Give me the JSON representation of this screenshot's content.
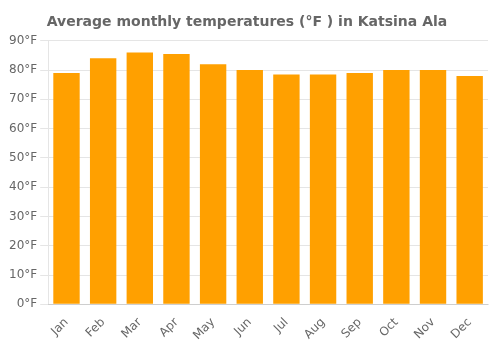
{
  "chart_data": {
    "type": "bar",
    "title": "Average monthly temperatures (°F ) in Katsina Ala",
    "categories": [
      "Jan",
      "Feb",
      "Mar",
      "Apr",
      "May",
      "Jun",
      "Jul",
      "Aug",
      "Sep",
      "Oct",
      "Nov",
      "Dec"
    ],
    "values": [
      79,
      84,
      86,
      85.5,
      82,
      80,
      78.5,
      78.5,
      79,
      80,
      80,
      78
    ],
    "color": "#FFA000",
    "ylim": [
      0,
      90
    ],
    "yticks": [
      {
        "value": 0,
        "label": "0°F"
      },
      {
        "value": 10,
        "label": "10°F"
      },
      {
        "value": 20,
        "label": "20°F"
      },
      {
        "value": 30,
        "label": "30°F"
      },
      {
        "value": 40,
        "label": "40°F"
      },
      {
        "value": 50,
        "label": "50°F"
      },
      {
        "value": 60,
        "label": "60°F"
      },
      {
        "value": 70,
        "label": "70°F"
      },
      {
        "value": 80,
        "label": "80°F"
      },
      {
        "value": 90,
        "label": "90°F"
      }
    ],
    "grid": true
  }
}
